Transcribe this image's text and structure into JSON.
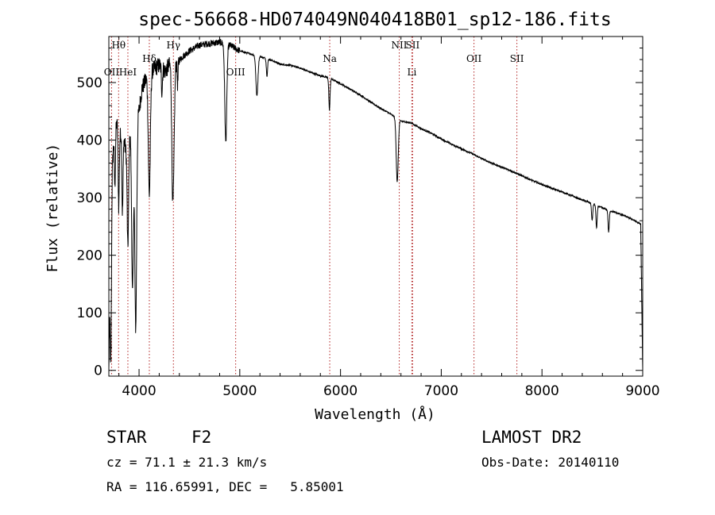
{
  "chart_data": {
    "type": "line",
    "title": "spec-56668-HD074049N040418B01_sp12-186.fits",
    "xlabel": "Wavelength (Å)",
    "ylabel": "Flux (relative)",
    "xlim": [
      3700,
      9000
    ],
    "ylim": [
      -10,
      580
    ],
    "x_ticks": [
      4000,
      5000,
      6000,
      7000,
      8000,
      9000
    ],
    "y_ticks": [
      0,
      100,
      200,
      300,
      400,
      500
    ],
    "grid": false,
    "line_color": "#000000",
    "marker_color": "#b22222",
    "spectrum_anchors": [
      [
        3700,
        0
      ],
      [
        3720,
        320
      ],
      [
        3750,
        400
      ],
      [
        3780,
        430
      ],
      [
        3800,
        390
      ],
      [
        3830,
        430
      ],
      [
        3870,
        380
      ],
      [
        3900,
        400
      ],
      [
        3930,
        420
      ],
      [
        3960,
        300
      ],
      [
        3990,
        440
      ],
      [
        4030,
        490
      ],
      [
        4080,
        510
      ],
      [
        4120,
        520
      ],
      [
        4160,
        525
      ],
      [
        4200,
        530
      ],
      [
        4260,
        520
      ],
      [
        4300,
        530
      ],
      [
        4400,
        540
      ],
      [
        4500,
        555
      ],
      [
        4600,
        565
      ],
      [
        4700,
        568
      ],
      [
        4800,
        570
      ],
      [
        4900,
        565
      ],
      [
        5000,
        555
      ],
      [
        5100,
        550
      ],
      [
        5200,
        545
      ],
      [
        5300,
        540
      ],
      [
        5400,
        532
      ],
      [
        5500,
        530
      ],
      [
        5600,
        525
      ],
      [
        5700,
        518
      ],
      [
        5800,
        512
      ],
      [
        5900,
        507
      ],
      [
        6000,
        498
      ],
      [
        6100,
        488
      ],
      [
        6200,
        478
      ],
      [
        6300,
        466
      ],
      [
        6400,
        455
      ],
      [
        6500,
        445
      ],
      [
        6600,
        433
      ],
      [
        6700,
        430
      ],
      [
        6800,
        420
      ],
      [
        6900,
        412
      ],
      [
        7000,
        402
      ],
      [
        7100,
        393
      ],
      [
        7200,
        385
      ],
      [
        7300,
        377
      ],
      [
        7400,
        368
      ],
      [
        7500,
        360
      ],
      [
        7600,
        353
      ],
      [
        7700,
        346
      ],
      [
        7800,
        338
      ],
      [
        7900,
        330
      ],
      [
        8000,
        323
      ],
      [
        8100,
        316
      ],
      [
        8200,
        310
      ],
      [
        8300,
        303
      ],
      [
        8400,
        296
      ],
      [
        8500,
        290
      ],
      [
        8600,
        282
      ],
      [
        8700,
        276
      ],
      [
        8800,
        270
      ],
      [
        8900,
        262
      ],
      [
        8980,
        254
      ],
      [
        9000,
        0
      ]
    ],
    "absorption_features": [
      {
        "center": 3720,
        "depth": 300,
        "width": 6
      },
      {
        "center": 3760,
        "depth": 90,
        "width": 5
      },
      {
        "center": 3798,
        "depth": 110,
        "width": 5
      },
      {
        "center": 3835,
        "depth": 150,
        "width": 6
      },
      {
        "center": 3889,
        "depth": 180,
        "width": 7
      },
      {
        "center": 3934,
        "depth": 270,
        "width": 8
      },
      {
        "center": 3968,
        "depth": 260,
        "width": 8
      },
      {
        "center": 4102,
        "depth": 210,
        "width": 10
      },
      {
        "center": 4227,
        "depth": 40,
        "width": 5
      },
      {
        "center": 4330,
        "depth": 110,
        "width": 8
      },
      {
        "center": 4341,
        "depth": 180,
        "width": 10
      },
      {
        "center": 4383,
        "depth": 40,
        "width": 5
      },
      {
        "center": 4861,
        "depth": 170,
        "width": 10
      },
      {
        "center": 5170,
        "depth": 70,
        "width": 10
      },
      {
        "center": 5270,
        "depth": 30,
        "width": 6
      },
      {
        "center": 5890,
        "depth": 55,
        "width": 6
      },
      {
        "center": 6563,
        "depth": 110,
        "width": 10
      },
      {
        "center": 8498,
        "depth": 30,
        "width": 6
      },
      {
        "center": 8542,
        "depth": 40,
        "width": 6
      },
      {
        "center": 8662,
        "depth": 38,
        "width": 6
      }
    ],
    "spectral_lines": [
      {
        "label": "Hθ",
        "wavelength": 3797,
        "row": 1
      },
      {
        "label": "OII",
        "wavelength": 3727,
        "row": 2
      },
      {
        "label": "HeI",
        "wavelength": 3889,
        "row": 2
      },
      {
        "label": "Hδ",
        "wavelength": 4102,
        "row": 3
      },
      {
        "label": "Hγ",
        "wavelength": 4341,
        "row": 1
      },
      {
        "label": "OIII",
        "wavelength": 4959,
        "row": 2
      },
      {
        "label": "Na",
        "wavelength": 5893,
        "row": 3
      },
      {
        "label": "NII",
        "wavelength": 6583,
        "row": 1
      },
      {
        "label": "SII",
        "wavelength": 6716,
        "row": 1
      },
      {
        "label": "Li",
        "wavelength": 6708,
        "row": 2
      },
      {
        "label": "OII",
        "wavelength": 7325,
        "row": 3
      },
      {
        "label": "SII",
        "wavelength": 7751,
        "row": 3
      }
    ]
  },
  "info": {
    "object_class": "STAR",
    "subclass": "F2",
    "survey": "LAMOST DR2",
    "redshift": "cz = 71.1 ± 21.3 km/s",
    "obs_date": "Obs-Date: 20140110",
    "coords": "RA = 116.65991, DEC =   5.85001"
  }
}
